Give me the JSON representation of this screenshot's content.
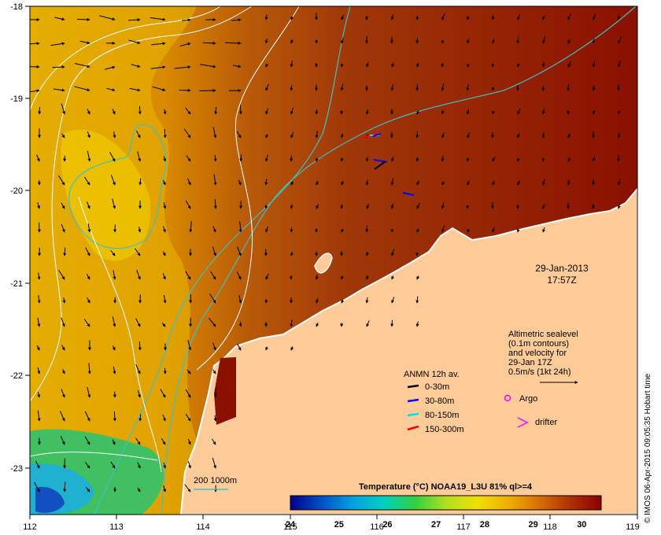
{
  "map": {
    "lon_ticks": [
      "112",
      "113",
      "114",
      "115",
      "116",
      "117",
      "118",
      "119"
    ],
    "lat_ticks": [
      "-18",
      "-19",
      "-20",
      "-21",
      "-22",
      "-23"
    ],
    "extent": {
      "lon": [
        112,
        119
      ],
      "lat": [
        -23.55,
        -18.0
      ]
    }
  },
  "timestamp": {
    "date": "29-Jan-2013",
    "time": "17:57Z"
  },
  "altimetry_note": {
    "lines": [
      "Altimetric sealevel",
      "(0.1m contours)",
      "and velocity for",
      "29-Jan 17Z",
      "0.5m/s (1kt 24h)"
    ]
  },
  "anmn_legend": {
    "title": "ANMN 12h av.",
    "items": [
      {
        "label": "0-30m",
        "color": "#000000"
      },
      {
        "label": "30-80m",
        "color": "#0000ff"
      },
      {
        "label": "80-150m",
        "color": "#00e0e0"
      },
      {
        "label": "150-300m",
        "color": "#ff0000"
      }
    ]
  },
  "markers_legend": {
    "argo": {
      "label": "Argo",
      "color": "#ff00ff"
    },
    "drifter": {
      "label": "drifter",
      "color": "#ff00ff"
    }
  },
  "contour_legend": {
    "label": "200  1000m",
    "color": "#40c0c0"
  },
  "colorbar": {
    "title": "Temperature (°C) NOAA19_L3U 81% ql>=4",
    "ticks": [
      "24",
      "25",
      "26",
      "27",
      "28",
      "29",
      "30"
    ],
    "range": [
      24,
      30.4
    ],
    "colors": [
      "#00008a",
      "#0050c8",
      "#00a0e0",
      "#00d0c0",
      "#30d040",
      "#b0e020",
      "#f0e000",
      "#f0b000",
      "#d87000",
      "#b03000",
      "#8a0000"
    ]
  },
  "credit": "© IMOS 06-Apr-2015 09:05:35 Hobart time",
  "colors": {
    "land": "#ffcc99",
    "coast": "#ffffff",
    "sealevel_contour": "#ffffff",
    "bathy_contour": "#40c0c0"
  }
}
